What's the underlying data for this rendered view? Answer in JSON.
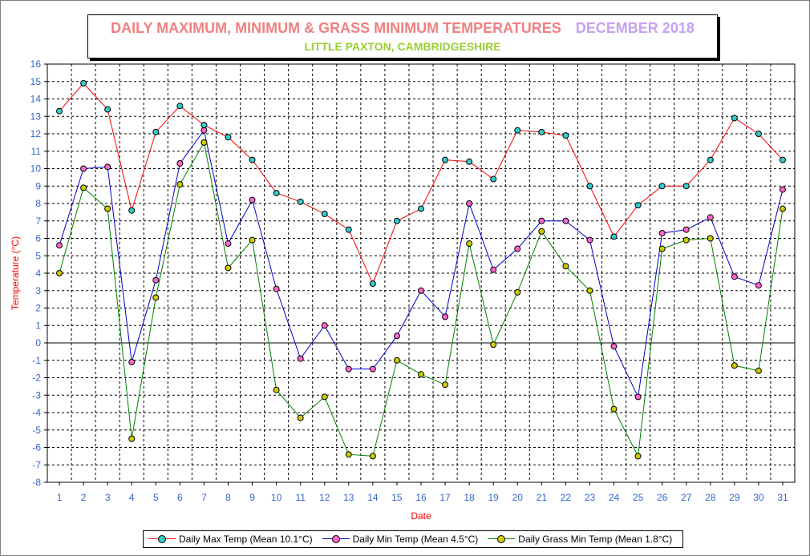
{
  "header": {
    "title": "DAILY MAXIMUM, MINIMUM & GRASS MINIMUM TEMPERATURES",
    "period": "DECEMBER 2018",
    "subtitle": "LITTLE PAXTON, CAMBRIDGESHIRE"
  },
  "chart_data": {
    "type": "line",
    "xlabel": "Date",
    "ylabel": "Temperature (°C)",
    "ylim": [
      -8,
      16
    ],
    "xlim": [
      1,
      31
    ],
    "grid": true,
    "legend_position": "bottom",
    "x": [
      1,
      2,
      3,
      4,
      5,
      6,
      7,
      8,
      9,
      10,
      11,
      12,
      13,
      14,
      15,
      16,
      17,
      18,
      19,
      20,
      21,
      22,
      23,
      24,
      25,
      26,
      27,
      28,
      29,
      30,
      31
    ],
    "y_ticks": [
      -8,
      -7,
      -6,
      -5,
      -4,
      -3,
      -2,
      -1,
      0,
      1,
      2,
      3,
      4,
      5,
      6,
      7,
      8,
      9,
      10,
      11,
      12,
      13,
      14,
      15,
      16
    ],
    "series": [
      {
        "name": "Daily Max Temp (Mean 10.1°C)",
        "line_color": "#ff0000",
        "marker_color": "#33cccc",
        "values": [
          13.3,
          14.9,
          13.4,
          7.6,
          12.1,
          13.6,
          12.5,
          11.8,
          10.5,
          8.6,
          8.1,
          7.4,
          6.5,
          3.4,
          7.0,
          7.7,
          10.5,
          10.4,
          9.4,
          12.2,
          12.1,
          11.9,
          9.0,
          6.1,
          7.9,
          9.0,
          9.0,
          10.5,
          12.9,
          12.0,
          10.5
        ]
      },
      {
        "name": "Daily Min Temp (Mean 4.5°C)",
        "line_color": "#0000cc",
        "marker_color": "#ff66cc",
        "values": [
          5.6,
          10.0,
          10.1,
          -1.1,
          3.6,
          10.3,
          12.2,
          5.7,
          8.2,
          3.1,
          -0.9,
          1.0,
          -1.5,
          -1.5,
          0.4,
          3.0,
          1.5,
          8.0,
          4.2,
          5.4,
          7.0,
          7.0,
          5.9,
          -0.2,
          -3.1,
          6.3,
          6.5,
          7.2,
          3.8,
          3.3,
          8.8
        ]
      },
      {
        "name": "Daily Grass Min Temp (Mean 1.8°C)",
        "line_color": "#008000",
        "marker_color": "#cccc00",
        "values": [
          4.0,
          8.9,
          7.7,
          -5.5,
          2.6,
          9.1,
          11.5,
          4.3,
          5.9,
          -2.7,
          -4.3,
          -3.1,
          -6.4,
          -6.5,
          -1.0,
          -1.8,
          -2.4,
          5.7,
          -0.1,
          2.9,
          6.4,
          4.4,
          3.0,
          -3.8,
          -6.5,
          5.4,
          5.9,
          6.0,
          -1.3,
          -1.6,
          7.7
        ]
      }
    ]
  },
  "colors": {
    "title": "#f08080",
    "period": "#c8a0f0",
    "subtitle": "#9acd32",
    "axis_label": "#ff0000",
    "tick_label": "#3366cc"
  }
}
